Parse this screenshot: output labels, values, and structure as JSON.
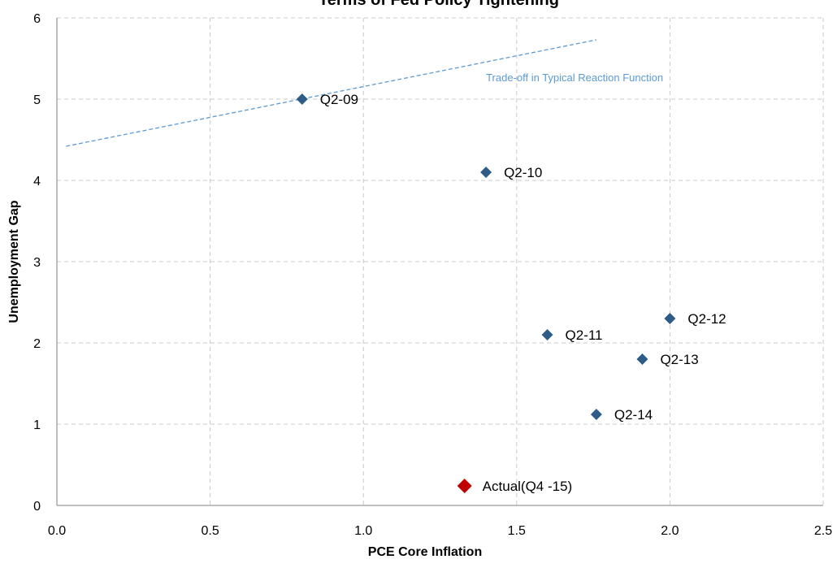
{
  "chart_data": {
    "type": "scatter",
    "title": "Terms of Fed Policy Tightening",
    "xlabel": "PCE Core Inflation",
    "ylabel": "Unemployment Gap",
    "xlim": [
      0.0,
      2.5
    ],
    "ylim": [
      0,
      6
    ],
    "x_ticks": [
      "0.0",
      "0.5",
      "1.0",
      "1.5",
      "2.0",
      "2.5"
    ],
    "y_ticks": [
      "0",
      "1",
      "2",
      "3",
      "4",
      "5",
      "6"
    ],
    "grid": true,
    "points": [
      {
        "label": "Q2-09",
        "x": 0.8,
        "y": 5.0,
        "color": "#2e5c87"
      },
      {
        "label": "Q2-10",
        "x": 1.4,
        "y": 4.1,
        "color": "#2e5c87"
      },
      {
        "label": "Q2-11",
        "x": 1.6,
        "y": 2.1,
        "color": "#2e5c87"
      },
      {
        "label": "Q2-12",
        "x": 2.0,
        "y": 2.3,
        "color": "#2e5c87"
      },
      {
        "label": "Q2-13",
        "x": 1.91,
        "y": 1.8,
        "color": "#2e5c87"
      },
      {
        "label": "Q2-14",
        "x": 1.76,
        "y": 1.12,
        "color": "#2e5c87"
      },
      {
        "label": "Actual(Q4 -15)",
        "x": 1.33,
        "y": 0.24,
        "color": "#c00000"
      }
    ],
    "trend_line": {
      "label": "Trade-off in Typical Reaction Function",
      "x": [
        0.03,
        1.76
      ],
      "y": [
        4.42,
        5.73
      ],
      "color": "#5b9bd5"
    }
  }
}
